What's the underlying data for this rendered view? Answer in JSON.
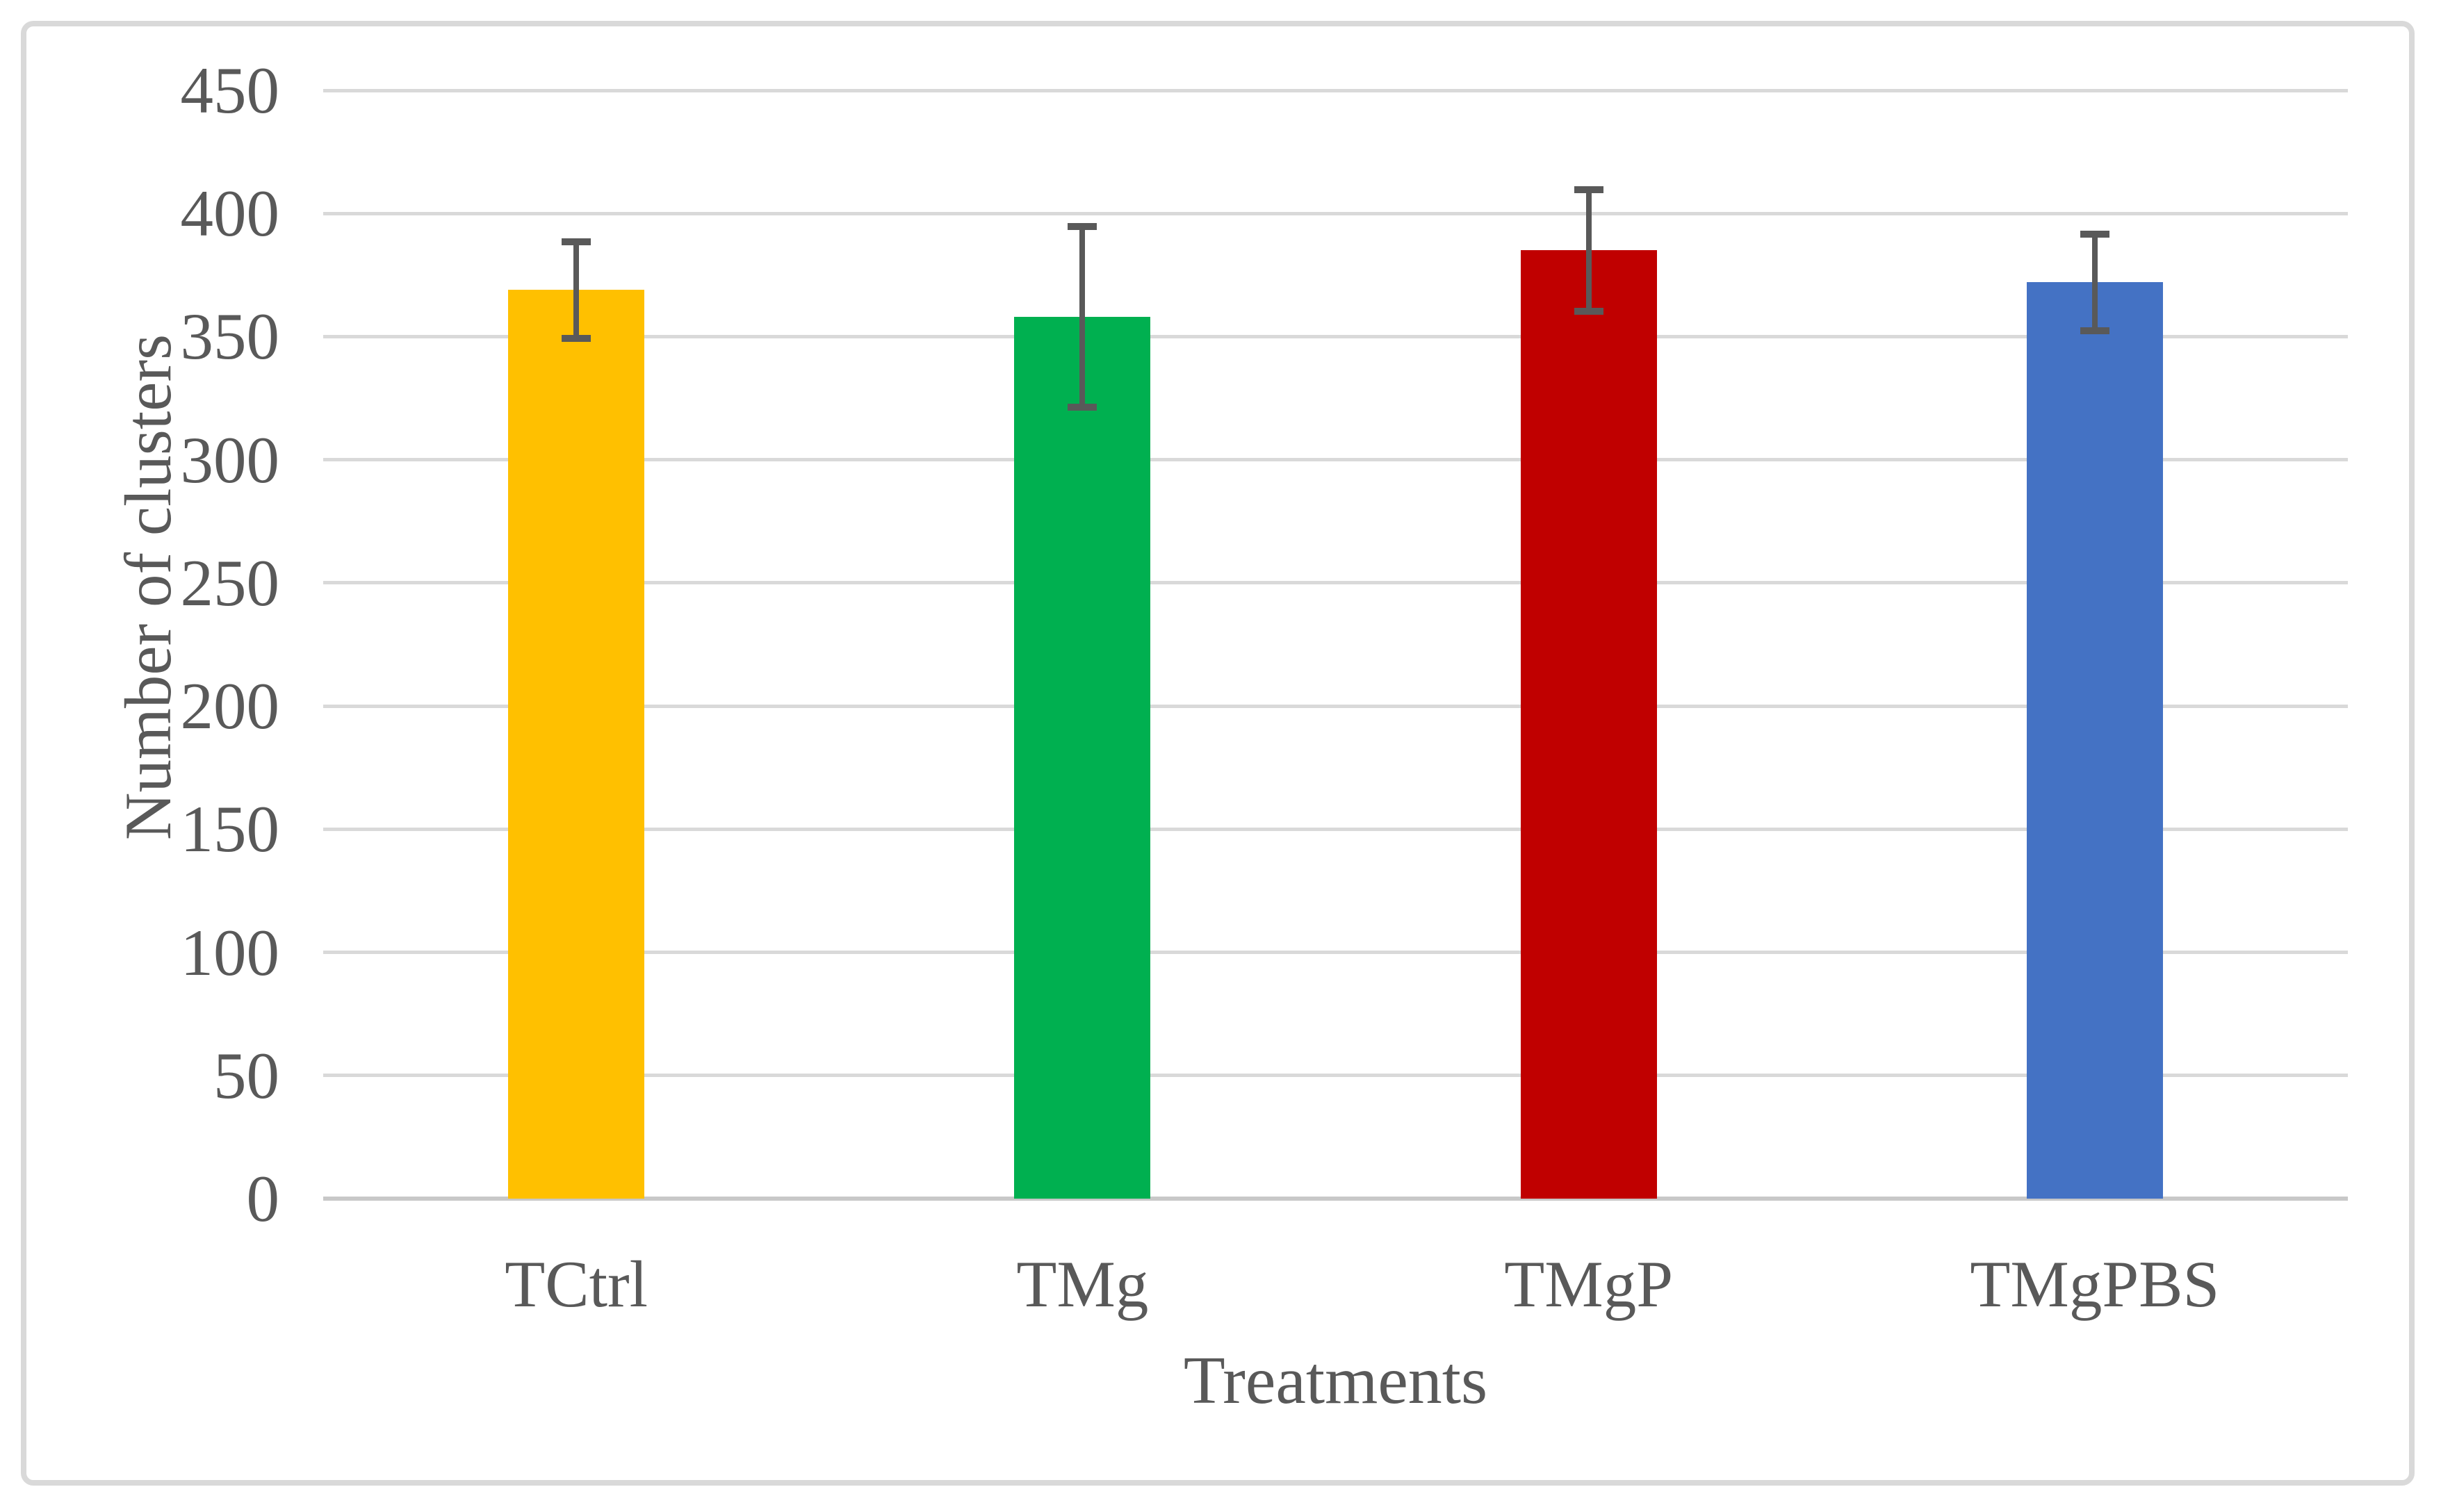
{
  "figure": {
    "background": "#FFFFFF",
    "border_color": "#D9D9D9"
  },
  "colors": {
    "text": "#595959",
    "gridline": "#D9D9D9",
    "axis_line": "#C8C8C8",
    "error_bar": "#595959"
  },
  "chart_data": {
    "type": "bar",
    "title": "",
    "categories": [
      "TCtrl",
      "TMg",
      "TMgP",
      "TMgPBS"
    ],
    "values": [
      369,
      358,
      385,
      372
    ],
    "error_plus": [
      21,
      38,
      26,
      21
    ],
    "error_minus": [
      21,
      38,
      26,
      21
    ],
    "bar_colors": [
      "#FFC000",
      "#00B050",
      "#C00000",
      "#4472C4"
    ],
    "xlabel": "Treatments",
    "ylabel": "Number of clusters",
    "ylim": [
      0,
      450
    ],
    "ytick_step": 50,
    "yticks": [
      450,
      400,
      350,
      300,
      250,
      200,
      150,
      100,
      50,
      0
    ],
    "grid": true,
    "legend_position": "none"
  }
}
